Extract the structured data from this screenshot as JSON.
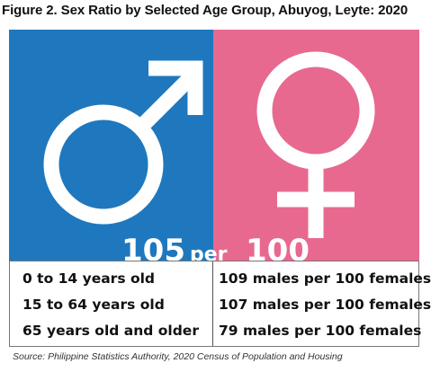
{
  "title": "Figure 2. Sex Ratio by Selected Age Group, Abuyog, Leyte: 2020",
  "colors": {
    "male_panel": "#1f78bd",
    "female_panel": "#e8698f",
    "symbol": "#ffffff"
  },
  "icons": {
    "male": "mars-icon",
    "female": "venus-icon"
  },
  "ratio": {
    "male_value": "105",
    "separator": "per",
    "female_value": "100"
  },
  "rows": [
    {
      "age_group": "0 to 14 years old",
      "value": "109 males per 100 females"
    },
    {
      "age_group": "15 to 64 years old",
      "value": "107 males per 100 females"
    },
    {
      "age_group": "65 years old and older",
      "value": "79 males per 100 females"
    }
  ],
  "source": "Source: Philippine Statistics Authority, 2020 Census of Population and Housing"
}
